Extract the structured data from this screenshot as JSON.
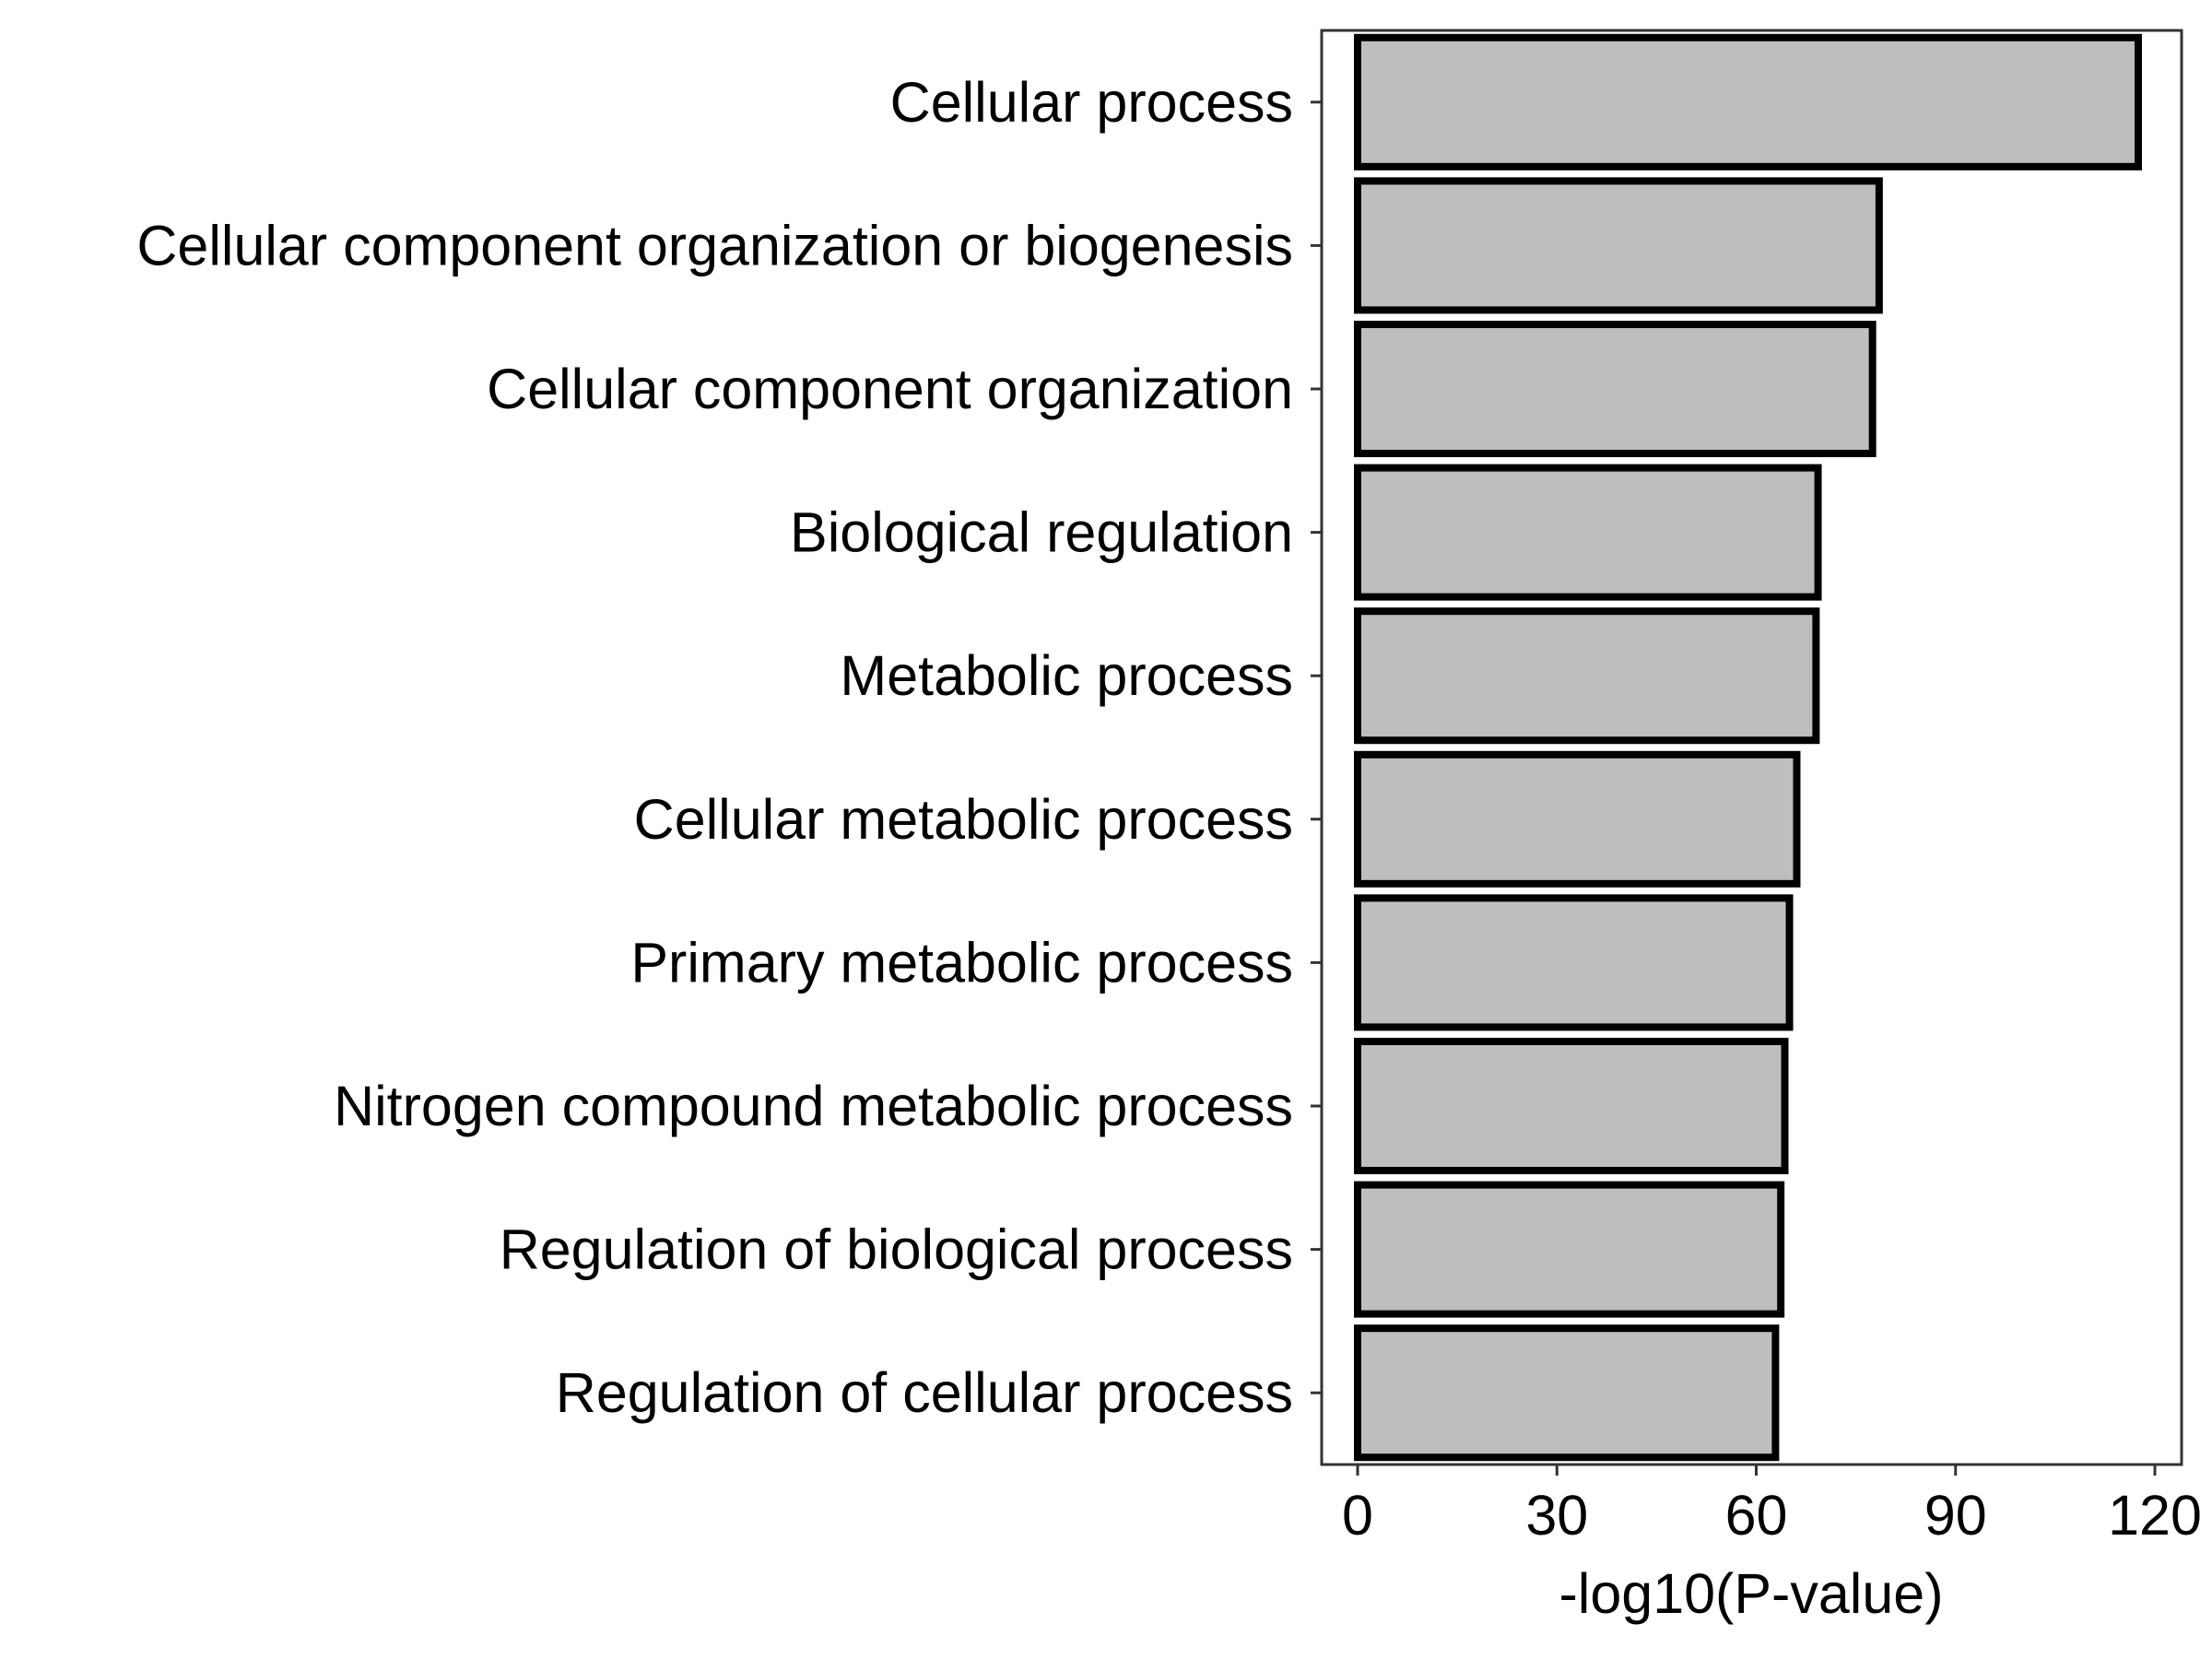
{
  "chart_data": {
    "type": "bar",
    "orientation": "horizontal",
    "categories": [
      "Cellular process",
      "Cellular component organization or biogenesis",
      "Cellular component organization",
      "Biological regulation",
      "Metabolic process",
      "Cellular metabolic process",
      "Primary metabolic process",
      "Nitrogen compound metabolic process",
      "Regulation of biological process",
      "Regulation of cellular process"
    ],
    "values": [
      117.5,
      78.5,
      77.5,
      69.3,
      69.0,
      66.1,
      65.0,
      64.3,
      63.7,
      62.9
    ],
    "xlabel": "-log10(P-value)",
    "ylabel": "",
    "title": "",
    "xlim": [
      -5.5,
      122.5
    ],
    "xticks": [
      0,
      30,
      60,
      90,
      120
    ],
    "xtick_labels": [
      "0",
      "30",
      "60",
      "90",
      "120"
    ],
    "grid": false,
    "legend": "none",
    "colors": {
      "bar_fill": "#bebebe",
      "bar_stroke": "#000000",
      "panel_border": "#333333",
      "background": "#ffffff"
    }
  }
}
